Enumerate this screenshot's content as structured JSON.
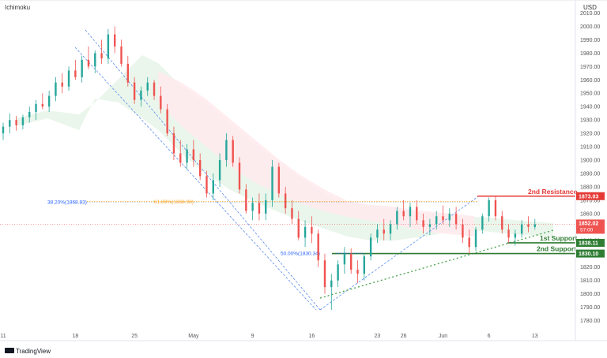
{
  "header": {
    "indicator": "Ichimoku",
    "currency": "USD"
  },
  "brand": {
    "name": "TradingView",
    "logo": "tradingview-logo"
  },
  "chart_data": {
    "type": "candlestick",
    "y_axis": {
      "min": 1775,
      "max": 2015,
      "ticks": [
        1780,
        1790,
        1800,
        1810,
        1820,
        1830,
        1840,
        1850,
        1860,
        1870,
        1880,
        1890,
        1900,
        1910,
        1920,
        1930,
        1940,
        1950,
        1960,
        1970,
        1980,
        1990,
        2000,
        2010
      ],
      "position": "right"
    },
    "x_axis": {
      "ticks": [
        "11",
        "18",
        "25",
        "May",
        "9",
        "16",
        "23",
        "26",
        "Jun",
        "6",
        "13"
      ]
    },
    "levels": [
      {
        "name": "2nd Resistance",
        "value": 1873.03,
        "label": "1873.03",
        "color": "#e53935"
      },
      {
        "name": "1st Support",
        "value": 1838.11,
        "label": "1838.11",
        "color": "#2e7d32"
      },
      {
        "name": "2nd Support",
        "value": 1830.1,
        "label": "1830.10",
        "color": "#2e7d32"
      }
    ],
    "current_price": {
      "value": 1852.02,
      "label": "1852.02",
      "countdown": "57:00",
      "color": "#ef5350"
    },
    "fibonacci": [
      {
        "label": "38.20%(1868.83)",
        "value": 1868.83,
        "color": "#2962ff"
      },
      {
        "label": "61.80%(1868.93)",
        "value": 1868.93,
        "color": "#f9a825"
      },
      {
        "label": "50.00%(1830.34)",
        "value": 1830.34,
        "color": "#2962ff"
      }
    ],
    "candles": [
      [
        0,
        1920,
        1928,
        1915,
        1925
      ],
      [
        2,
        1925,
        1935,
        1920,
        1930
      ],
      [
        4,
        1930,
        1933,
        1922,
        1926
      ],
      [
        6,
        1926,
        1934,
        1923,
        1932
      ],
      [
        8,
        1932,
        1940,
        1928,
        1936
      ],
      [
        10,
        1936,
        1945,
        1930,
        1942
      ],
      [
        12,
        1942,
        1950,
        1938,
        1940
      ],
      [
        14,
        1940,
        1952,
        1936,
        1948
      ],
      [
        16,
        1948,
        1962,
        1944,
        1958
      ],
      [
        18,
        1958,
        1965,
        1950,
        1955
      ],
      [
        20,
        1955,
        1970,
        1952,
        1967
      ],
      [
        22,
        1967,
        1975,
        1960,
        1962
      ],
      [
        24,
        1962,
        1978,
        1958,
        1975
      ],
      [
        26,
        1975,
        1985,
        1968,
        1970
      ],
      [
        28,
        1970,
        1982,
        1965,
        1980
      ],
      [
        30,
        1980,
        1990,
        1972,
        1976
      ],
      [
        32,
        1976,
        1998,
        1972,
        1994
      ],
      [
        34,
        1994,
        2000,
        1980,
        1985
      ],
      [
        36,
        1985,
        1990,
        1970,
        1972
      ],
      [
        38,
        1972,
        1978,
        1955,
        1958
      ],
      [
        40,
        1958,
        1962,
        1942,
        1945
      ],
      [
        42,
        1945,
        1955,
        1940,
        1952
      ],
      [
        44,
        1952,
        1962,
        1948,
        1958
      ],
      [
        46,
        1958,
        1960,
        1945,
        1948
      ],
      [
        48,
        1948,
        1955,
        1935,
        1938
      ],
      [
        50,
        1938,
        1942,
        1918,
        1920
      ],
      [
        52,
        1920,
        1925,
        1900,
        1905
      ],
      [
        54,
        1905,
        1915,
        1895,
        1898
      ],
      [
        56,
        1898,
        1912,
        1893,
        1908
      ],
      [
        58,
        1908,
        1915,
        1895,
        1900
      ],
      [
        60,
        1900,
        1905,
        1885,
        1888
      ],
      [
        62,
        1888,
        1892,
        1872,
        1875
      ],
      [
        64,
        1875,
        1890,
        1870,
        1885
      ],
      [
        66,
        1885,
        1905,
        1880,
        1900
      ],
      [
        68,
        1900,
        1920,
        1895,
        1915
      ],
      [
        70,
        1915,
        1918,
        1895,
        1898
      ],
      [
        72,
        1898,
        1902,
        1875,
        1878
      ],
      [
        74,
        1878,
        1882,
        1860,
        1862
      ],
      [
        76,
        1862,
        1872,
        1855,
        1868
      ],
      [
        78,
        1868,
        1875,
        1855,
        1860
      ],
      [
        80,
        1860,
        1875,
        1855,
        1870
      ],
      [
        82,
        1870,
        1900,
        1865,
        1895
      ],
      [
        84,
        1895,
        1898,
        1872,
        1875
      ],
      [
        86,
        1875,
        1880,
        1860,
        1864
      ],
      [
        88,
        1864,
        1870,
        1852,
        1856
      ],
      [
        90,
        1856,
        1862,
        1840,
        1842
      ],
      [
        92,
        1842,
        1855,
        1835,
        1850
      ],
      [
        94,
        1850,
        1858,
        1838,
        1845
      ],
      [
        96,
        1845,
        1848,
        1820,
        1825
      ],
      [
        98,
        1825,
        1830,
        1800,
        1805
      ],
      [
        100,
        1805,
        1815,
        1788,
        1810
      ],
      [
        102,
        1810,
        1825,
        1805,
        1822
      ],
      [
        104,
        1822,
        1835,
        1815,
        1830
      ],
      [
        106,
        1830,
        1834,
        1815,
        1818
      ],
      [
        108,
        1818,
        1825,
        1808,
        1815
      ],
      [
        110,
        1815,
        1830,
        1810,
        1828
      ],
      [
        112,
        1828,
        1845,
        1825,
        1842
      ],
      [
        114,
        1842,
        1852,
        1838,
        1848
      ],
      [
        116,
        1848,
        1856,
        1840,
        1845
      ],
      [
        118,
        1845,
        1855,
        1840,
        1852
      ],
      [
        120,
        1852,
        1865,
        1848,
        1862
      ],
      [
        122,
        1862,
        1870,
        1855,
        1858
      ],
      [
        124,
        1858,
        1868,
        1850,
        1865
      ],
      [
        126,
        1865,
        1870,
        1852,
        1855
      ],
      [
        128,
        1855,
        1860,
        1845,
        1850
      ],
      [
        130,
        1850,
        1856,
        1844,
        1852
      ],
      [
        132,
        1852,
        1862,
        1848,
        1858
      ],
      [
        134,
        1858,
        1866,
        1852,
        1855
      ],
      [
        136,
        1855,
        1864,
        1850,
        1860
      ],
      [
        138,
        1860,
        1865,
        1848,
        1852
      ],
      [
        140,
        1852,
        1856,
        1838,
        1842
      ],
      [
        142,
        1842,
        1848,
        1830,
        1835
      ],
      [
        144,
        1835,
        1850,
        1832,
        1848
      ],
      [
        146,
        1848,
        1860,
        1845,
        1858
      ],
      [
        148,
        1858,
        1872,
        1854,
        1870
      ],
      [
        150,
        1870,
        1873,
        1855,
        1858
      ],
      [
        152,
        1858,
        1862,
        1845,
        1848
      ],
      [
        154,
        1848,
        1852,
        1838,
        1842
      ],
      [
        156,
        1842,
        1848,
        1836,
        1845
      ],
      [
        158,
        1845,
        1855,
        1842,
        1852
      ],
      [
        160,
        1852,
        1858,
        1846,
        1850
      ],
      [
        162,
        1850,
        1856,
        1848,
        1852
      ]
    ],
    "tick_positions": [
      0,
      22,
      40,
      58,
      76,
      94,
      114,
      122,
      134,
      148,
      162
    ]
  }
}
